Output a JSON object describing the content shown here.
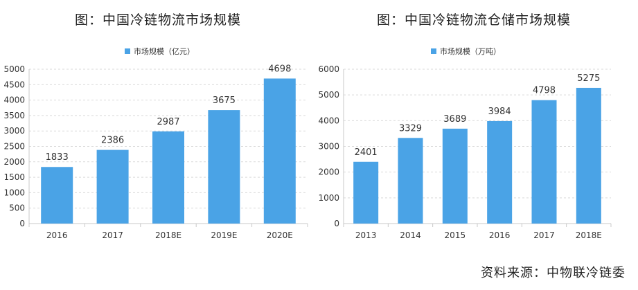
{
  "source_text": "资料来源：中物联冷链委",
  "colors": {
    "bar": "#4aa3e6",
    "grid": "#d9d9d9",
    "axis": "#c8c8c8",
    "text": "#333333"
  },
  "chart_data": [
    {
      "type": "bar",
      "title": "图：中国冷链物流市场规模",
      "legend": "市场规模（亿元）",
      "legend_position": "top-center",
      "grid": true,
      "categories": [
        "2016",
        "2017",
        "2018E",
        "2019E",
        "2020E"
      ],
      "values": [
        1833,
        2386,
        2987,
        3675,
        4698
      ],
      "ylim": [
        0,
        5000
      ],
      "yticks": [
        0,
        500,
        1000,
        1500,
        2000,
        2500,
        3000,
        3500,
        4000,
        4500,
        5000
      ]
    },
    {
      "type": "bar",
      "title": "图：中国冷链物流仓储市场规模",
      "legend": "市场规模（万吨）",
      "legend_position": "top-center",
      "grid": true,
      "categories": [
        "2013",
        "2014",
        "2015",
        "2016",
        "2017",
        "2018E"
      ],
      "values": [
        2401,
        3329,
        3689,
        3984,
        4798,
        5275
      ],
      "ylim": [
        0,
        6000
      ],
      "yticks": [
        0,
        1000,
        2000,
        3000,
        4000,
        5000,
        6000
      ]
    }
  ]
}
